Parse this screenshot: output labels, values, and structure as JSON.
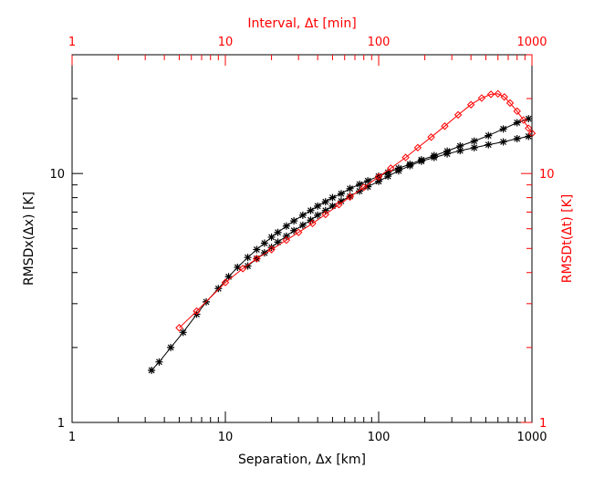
{
  "chart_data": {
    "type": "scatter",
    "xlabel": "Separation, Δx [km]",
    "ylabel": "RMSDx(Δx) [K]",
    "x2label": "Interval, Δt [min]",
    "y2label": "RMSDt(Δt) [K]",
    "xlim": [
      1,
      1000
    ],
    "ylim": [
      1,
      30
    ],
    "x2lim": [
      1,
      1000
    ],
    "y2lim": [
      1,
      30
    ],
    "xscale": "log",
    "yscale": "log",
    "grid": false,
    "colors": {
      "primary": "#000000",
      "secondary": "#ff0000"
    },
    "x_ticks": [
      {
        "value": 1,
        "label": "1"
      },
      {
        "value": 10,
        "label": "10"
      },
      {
        "value": 100,
        "label": "100"
      },
      {
        "value": 1000,
        "label": "1000"
      }
    ],
    "y_ticks": [
      {
        "value": 1,
        "label": "1"
      },
      {
        "value": 10,
        "label": "10"
      }
    ],
    "x2_ticks": [
      {
        "value": 1,
        "label": "1"
      },
      {
        "value": 10,
        "label": "10"
      },
      {
        "value": 100,
        "label": "100"
      },
      {
        "value": 1000,
        "label": "1000"
      }
    ],
    "y2_ticks": [
      {
        "value": 1,
        "label": "1"
      },
      {
        "value": 10,
        "label": "10"
      }
    ],
    "series": [
      {
        "axis": "primary",
        "color": "#000000",
        "marker": "asterisk",
        "x": [
          3.3,
          3.7,
          4.4,
          5.3,
          6.5,
          7.5,
          9,
          10.5,
          12,
          14,
          16,
          18,
          20,
          22,
          25,
          28,
          32,
          36,
          40,
          45,
          50,
          57,
          65,
          75,
          85,
          100,
          115,
          135,
          160,
          190,
          230,
          280,
          340,
          420,
          520,
          650,
          800,
          950
        ],
        "y": [
          1.62,
          1.75,
          2.0,
          2.3,
          2.72,
          3.05,
          3.45,
          3.85,
          4.2,
          4.6,
          4.95,
          5.25,
          5.55,
          5.8,
          6.15,
          6.45,
          6.8,
          7.1,
          7.4,
          7.7,
          8.0,
          8.3,
          8.7,
          9.05,
          9.35,
          9.75,
          10.1,
          10.5,
          10.9,
          11.35,
          11.8,
          12.3,
          12.9,
          13.5,
          14.2,
          15.1,
          16.0,
          16.6
        ]
      },
      {
        "axis": "primary",
        "color": "#000000",
        "marker": "asterisk",
        "x": [
          14,
          16,
          18,
          20,
          22,
          25,
          28,
          32,
          36,
          40,
          45,
          50,
          57,
          65,
          75,
          85,
          100,
          115,
          135,
          160,
          190,
          230,
          280,
          340,
          420,
          520,
          650,
          800,
          950
        ],
        "y": [
          4.25,
          4.55,
          4.8,
          5.05,
          5.3,
          5.6,
          5.9,
          6.2,
          6.5,
          6.8,
          7.1,
          7.4,
          7.75,
          8.1,
          8.5,
          8.85,
          9.3,
          9.75,
          10.25,
          10.75,
          11.2,
          11.6,
          12.0,
          12.35,
          12.7,
          13.05,
          13.4,
          13.8,
          14.1
        ]
      },
      {
        "axis": "secondary",
        "color": "#ff0000",
        "marker": "diamond",
        "x": [
          5,
          6.5,
          10,
          13,
          16,
          20,
          25,
          30,
          37,
          45,
          55,
          65,
          80,
          100,
          120,
          150,
          180,
          220,
          270,
          330,
          400,
          470,
          540,
          600,
          660,
          720,
          800,
          880,
          950,
          1000
        ],
        "y": [
          2.4,
          2.8,
          3.65,
          4.15,
          4.55,
          4.95,
          5.4,
          5.8,
          6.3,
          6.85,
          7.5,
          8.05,
          8.8,
          9.7,
          10.5,
          11.6,
          12.7,
          14.0,
          15.5,
          17.2,
          18.9,
          20.1,
          20.8,
          20.9,
          20.3,
          19.2,
          17.8,
          16.4,
          15.2,
          14.5
        ]
      }
    ]
  }
}
